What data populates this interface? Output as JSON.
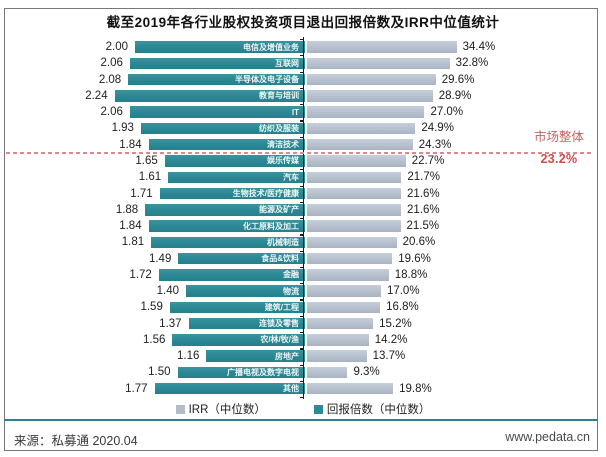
{
  "chart_data": {
    "type": "bar",
    "orientation": "horizontal-diverging",
    "title": "截至2019年各行业股权投资项目退出回报倍数及IRR中位值统计",
    "xlabel": "",
    "ylabel": "",
    "grid": false,
    "legend_position": "bottom",
    "categories": [
      "电信及增值业务",
      "互联网",
      "半导体及电子设备",
      "教育与培训",
      "IT",
      "纺织及服装",
      "清洁技术",
      "娱乐传媒",
      "汽车",
      "生物技术/医疗健康",
      "能源及矿产",
      "化工原料及加工",
      "机械制造",
      "食品&饮料",
      "金融",
      "物流",
      "建筑/工程",
      "连锁及零售",
      "农/林/牧/渔",
      "房地产",
      "广播电视及数字电视",
      "其他"
    ],
    "series": [
      {
        "name": "IRR（中位数）",
        "unit": "%",
        "color": "#b3bdc9",
        "values": [
          34.4,
          32.8,
          29.6,
          28.9,
          27.0,
          24.9,
          24.3,
          22.7,
          21.7,
          21.6,
          21.6,
          21.5,
          20.6,
          19.6,
          18.8,
          17.0,
          16.8,
          15.2,
          14.2,
          13.7,
          9.3,
          19.8
        ]
      },
      {
        "name": "回报倍数（中位数）",
        "unit": "x",
        "color": "#2d8a96",
        "values": [
          2.0,
          2.06,
          2.08,
          2.24,
          2.06,
          1.93,
          1.84,
          1.65,
          1.61,
          1.71,
          1.88,
          1.84,
          1.81,
          1.49,
          1.72,
          1.4,
          1.59,
          1.37,
          1.56,
          1.16,
          1.5,
          1.77
        ]
      }
    ],
    "market_overall": {
      "label": "市场整体",
      "value": "23.2%",
      "line_color": "#d98a8a",
      "after_category_index": 6
    }
  },
  "footer": {
    "source": "来源：私募通 2020.04",
    "website": "www.pedata.cn"
  }
}
